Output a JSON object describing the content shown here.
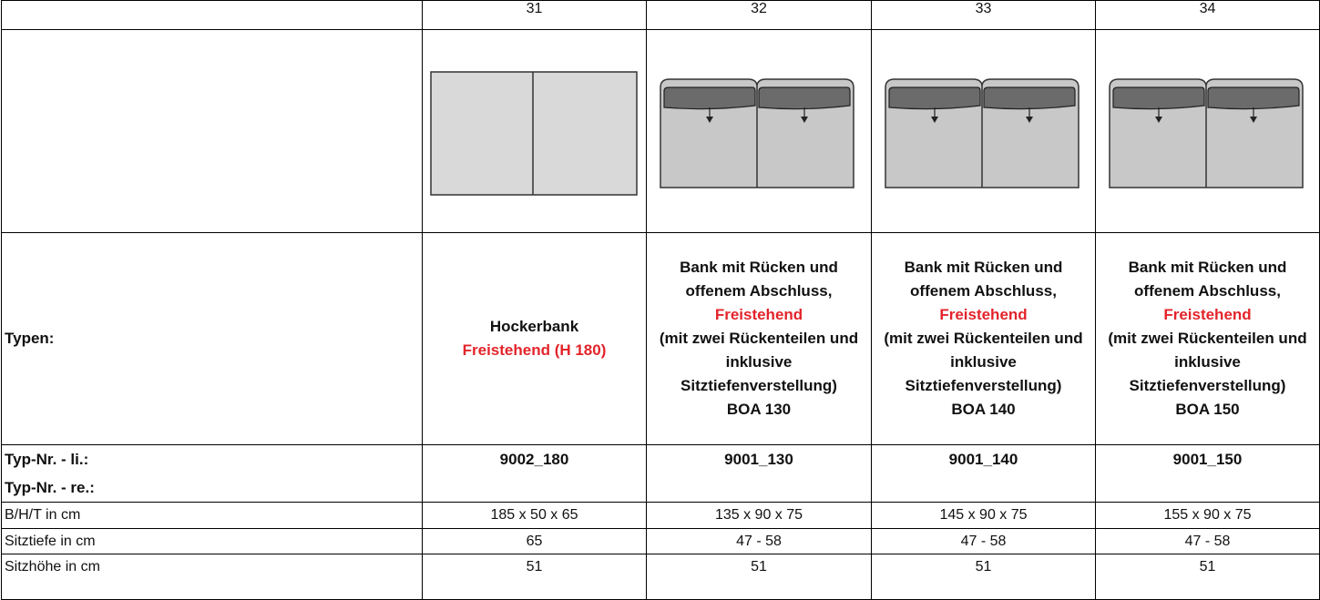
{
  "header": {
    "columns": [
      "31",
      "32",
      "33",
      "34"
    ]
  },
  "types": {
    "label": "Typen:",
    "columns": [
      {
        "name": "Hockerbank",
        "note": "Freistehend (H 180)"
      },
      {
        "name": "Bank mit Rücken und offenem Abschluss,",
        "note": "Freistehend",
        "detail": "(mit zwei Rückenteilen und inklusive Sitztiefenverstellung)",
        "model": "BOA 130"
      },
      {
        "name": "Bank mit Rücken und offenem Abschluss,",
        "note": "Freistehend",
        "detail": "(mit zwei Rückenteilen und inklusive Sitztiefenverstellung)",
        "model": "BOA 140"
      },
      {
        "name": "Bank mit Rücken und offenem Abschluss,",
        "note": "Freistehend",
        "detail": "(mit zwei Rückenteilen und inklusive Sitztiefenverstellung)",
        "model": "BOA 150"
      }
    ]
  },
  "type_numbers": {
    "labels": [
      "Typ-Nr. - li.:",
      "Typ-Nr. - re.:"
    ],
    "values": [
      "9002_180",
      "9001_130",
      "9001_140",
      "9001_150"
    ]
  },
  "rows": [
    {
      "label": "B/H/T in cm",
      "values": [
        "185 x 50 x 65",
        "135 x 90 x 75",
        "145 x 90 x 75",
        "155 x 90 x 75"
      ]
    },
    {
      "label": "Sitztiefe in cm",
      "values": [
        "65",
        "47 - 58",
        "47 - 58",
        "47 - 58"
      ]
    },
    {
      "label": "Sitzhöhe in cm",
      "values": [
        "51",
        "51",
        "51",
        "51"
      ]
    }
  ]
}
